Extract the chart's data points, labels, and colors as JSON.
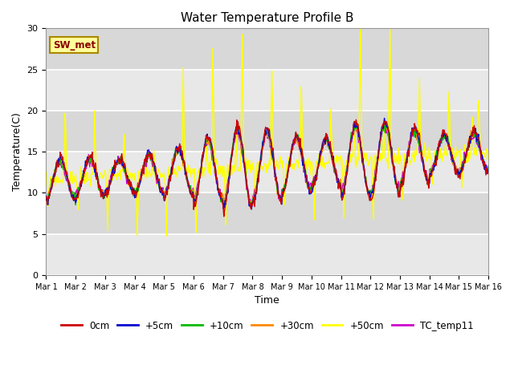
{
  "title": "Water Temperature Profile B",
  "xlabel": "Time",
  "ylabel": "Temperature(C)",
  "annotation": "SW_met",
  "ylim": [
    0,
    30
  ],
  "series_labels": [
    "0cm",
    "+5cm",
    "+10cm",
    "+30cm",
    "+50cm",
    "TC_temp11"
  ],
  "series_colors": [
    "#cc0000",
    "#0000cc",
    "#00bb00",
    "#ff8800",
    "#ffff00",
    "#cc00cc"
  ],
  "bg_color": "#d8d8d8",
  "band_color_light": "#e8e8e8",
  "band_color_dark": "#d0d0d0",
  "grid_line_color": "#ffffff",
  "xtick_labels": [
    "Mar 1",
    "Mar 2",
    "Mar 3",
    "Mar 4",
    "Mar 5",
    "Mar 6",
    "Mar 7",
    "Mar 8",
    "Mar 9",
    "Mar 10",
    "Mar 11",
    "Mar 12",
    "Mar 13",
    "Mar 14",
    "Mar 15",
    "Mar 16"
  ],
  "ytick_values": [
    0,
    5,
    10,
    15,
    20,
    25,
    30
  ],
  "figsize": [
    6.4,
    4.8
  ],
  "dpi": 100
}
